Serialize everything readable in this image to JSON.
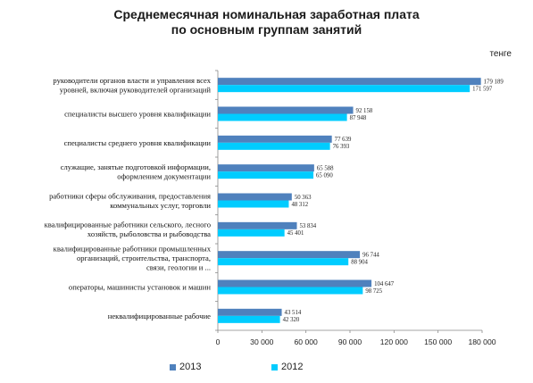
{
  "chart_data": {
    "type": "bar",
    "orientation": "horizontal",
    "title": [
      "Среднемесячная номинальная заработная плата",
      "по основным группам занятий"
    ],
    "unit": "тенге",
    "categories": [
      [
        "руководители органов власти и управления всех",
        "уровней, включая руководителей организаций"
      ],
      [
        "специалисты высшего уровня квалификации"
      ],
      [
        "специалисты среднего уровня квалификации"
      ],
      [
        "служащие, занятые подготовкой информации,",
        "оформлением документации"
      ],
      [
        "работники сферы обслуживания, предоставления",
        "коммунальных услуг, торговли"
      ],
      [
        "квалифицированные работники сельского, лесного",
        "хозяйств, рыболовства и рыбоводства"
      ],
      [
        "квалифицированные работники промышленных",
        "организаций, строительства, транспорта,",
        "связи, геологии и ..."
      ],
      [
        "операторы, машинисты установок и машин"
      ],
      [
        "неквалифицированные рабочие"
      ]
    ],
    "series": [
      {
        "name": "2013",
        "color": "#4f81bd",
        "values": [
          179189,
          92158,
          77639,
          65588,
          50363,
          53834,
          96744,
          104647,
          43514
        ],
        "labels": [
          "179 189",
          "92 158",
          "77 639",
          "65 588",
          "50 363",
          "53 834",
          "96 744",
          "104 647",
          "43 514"
        ]
      },
      {
        "name": "2012",
        "color": "#00ccff",
        "values": [
          171597,
          87948,
          76393,
          65090,
          48312,
          45401,
          88904,
          98725,
          42320
        ],
        "labels": [
          "171 597",
          "87 948",
          "76 393",
          "65 090",
          "48 312",
          "45 401",
          "88 904",
          "98 725",
          "42 320"
        ]
      }
    ],
    "xlim": [
      0,
      180000
    ],
    "xticks": [
      0,
      30000,
      60000,
      90000,
      120000,
      150000,
      180000
    ],
    "xtick_labels": [
      "0",
      "30 000",
      "60 000",
      "90 000",
      "120 000",
      "150 000",
      "180 000"
    ],
    "grid": false,
    "legend_position": "bottom"
  }
}
